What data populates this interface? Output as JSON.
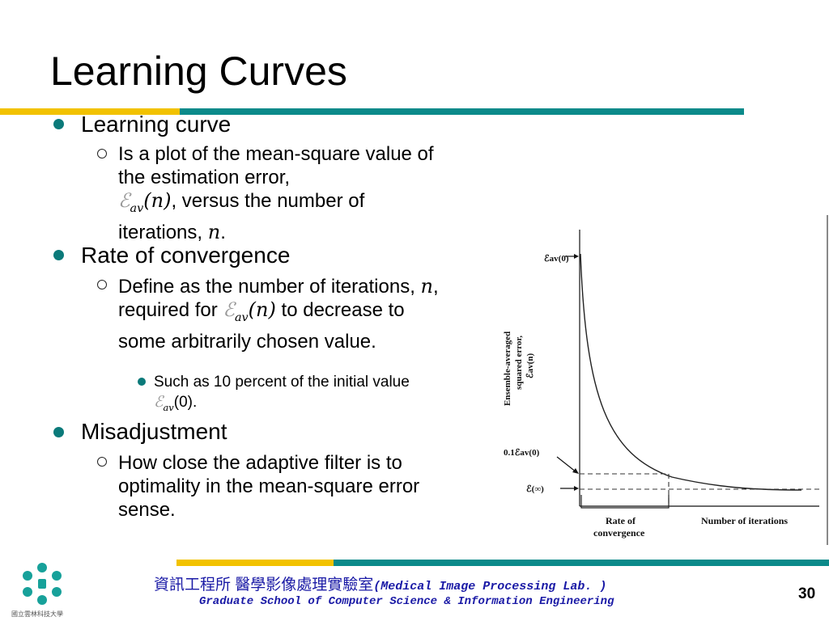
{
  "slide": {
    "title": "Learning Curves",
    "page_number": "30"
  },
  "symbols": {
    "E": "ℰ",
    "av": "av",
    "n": "n",
    "open_paren": "(",
    "close_paren": ")"
  },
  "bullets": {
    "learning_curve": {
      "heading": "Learning curve",
      "sub_text_1": "Is a plot of the mean-square value of the estimation error,",
      "sub_text_2": ", versus the number of iterations,",
      "sub_text_3": "."
    },
    "rate_of_convergence": {
      "heading": "Rate of convergence",
      "sub_text_1": "Define as the number of iterations,",
      "sub_text_2": ", required for",
      "sub_text_3": "to decrease to some arbitrarily chosen value.",
      "l3_text_1": "Such as 10 percent of the initial value",
      "l3_text_2": "(0)."
    },
    "misadjustment": {
      "heading": "Misadjustment",
      "sub_text": "How close the adaptive filter is to optimality in the mean-square error sense."
    }
  },
  "figure": {
    "y_axis_label_line1": "Ensemble-averaged",
    "y_axis_label_line2": "squared error,",
    "y_axis_label_line3": "ℰav(n)",
    "tick_initial": "ℰav(0)",
    "tick_ten_percent": "0.1ℰav(0)",
    "tick_final": "ℰ(∞)",
    "rate_label_line1": "Rate of",
    "rate_label_line2": "convergence",
    "x_axis_label": "Number of iterations"
  },
  "footer": {
    "chinese_name": "資訊工程所 醫學影像處理實驗室",
    "lab_name": "(Medical Image Processing Lab. )",
    "school": "Graduate School of Computer Science & Information Engineering",
    "logo_text": "國立雲林科技大學"
  },
  "colors": {
    "accent_yellow": "#f2c200",
    "accent_teal": "#0b8a8a",
    "footer_blue": "#1a1aa6"
  }
}
